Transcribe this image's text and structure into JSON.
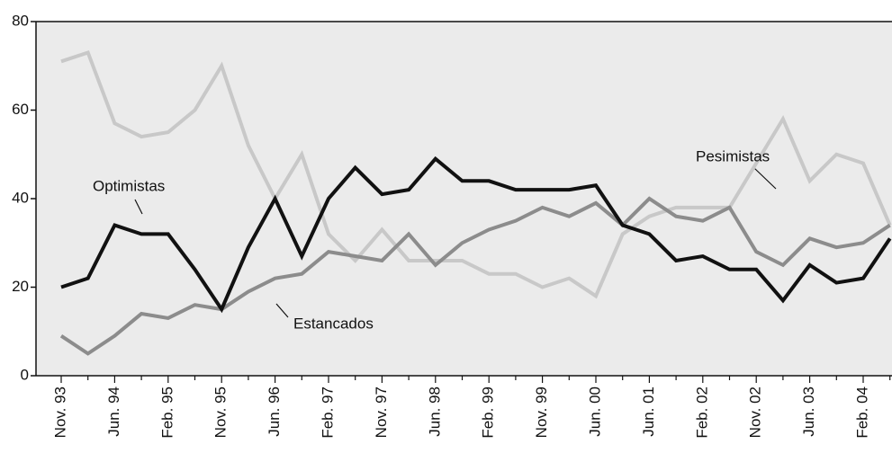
{
  "chart_data": {
    "type": "line",
    "categories": [
      "Nov. 93",
      null,
      "Jun. 94",
      null,
      "Feb. 95",
      null,
      "Nov. 95",
      null,
      "Jun. 96",
      null,
      "Feb. 97",
      null,
      "Nov. 97",
      null,
      "Jun. 98",
      null,
      "Feb. 99",
      null,
      "Nov. 99",
      null,
      "Jun. 00",
      null,
      "Jun. 01",
      null,
      "Feb. 02",
      null,
      "Nov. 02",
      null,
      "Jun. 03",
      null,
      "Feb. 04",
      null
    ],
    "series": [
      {
        "name": "Optimistas",
        "color": "#111111",
        "values": [
          20,
          22,
          34,
          32,
          32,
          24,
          15,
          29,
          40,
          27,
          40,
          47,
          41,
          42,
          49,
          44,
          44,
          42,
          42,
          42,
          43,
          34,
          32,
          26,
          27,
          24,
          24,
          17,
          25,
          21,
          22,
          31
        ]
      },
      {
        "name": "Estancados",
        "color": "#8c8c8c",
        "values": [
          9,
          5,
          9,
          14,
          13,
          16,
          15,
          19,
          22,
          23,
          28,
          27,
          26,
          32,
          25,
          30,
          33,
          35,
          38,
          36,
          39,
          34,
          40,
          36,
          35,
          38,
          28,
          25,
          31,
          29,
          30,
          34
        ]
      },
      {
        "name": "Pesimistas",
        "color": "#c8c8c8",
        "values": [
          71,
          73,
          57,
          54,
          55,
          60,
          70,
          52,
          40,
          50,
          32,
          26,
          33,
          26,
          26,
          26,
          23,
          23,
          20,
          22,
          18,
          32,
          36,
          38,
          38,
          38,
          48,
          58,
          44,
          50,
          48,
          34
        ]
      }
    ],
    "ylim": [
      0,
      80
    ],
    "yticks": [
      0,
      20,
      40,
      60,
      80
    ]
  }
}
